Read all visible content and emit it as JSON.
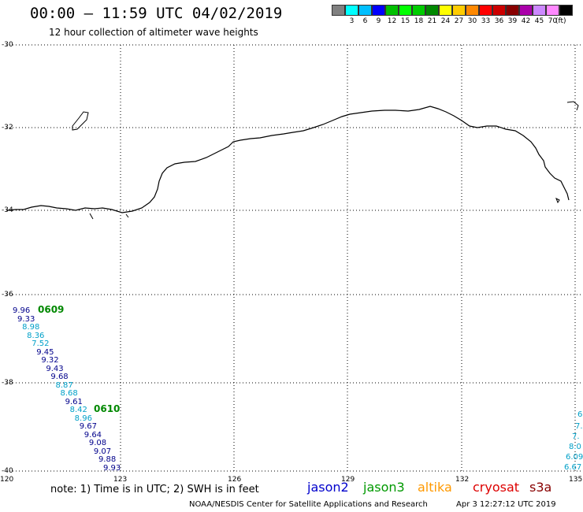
{
  "header": {
    "title": "00:00 – 11:59 UTC 04/02/2019",
    "subtitle": "12 hour collection of altimeter wave heights"
  },
  "legend": {
    "unit": "(ft)",
    "bins": [
      {
        "label": "",
        "color": "#808080"
      },
      {
        "label": "3",
        "color": "#00ffff"
      },
      {
        "label": "6",
        "color": "#00bfff"
      },
      {
        "label": "9",
        "color": "#0000ff"
      },
      {
        "label": "12",
        "color": "#00bf00"
      },
      {
        "label": "15",
        "color": "#00ff00"
      },
      {
        "label": "18",
        "color": "#00cc00"
      },
      {
        "label": "21",
        "color": "#008800"
      },
      {
        "label": "24",
        "color": "#ffff00"
      },
      {
        "label": "27",
        "color": "#ffcc00"
      },
      {
        "label": "30",
        "color": "#ff8800"
      },
      {
        "label": "33",
        "color": "#ff0000"
      },
      {
        "label": "36",
        "color": "#cc0000"
      },
      {
        "label": "39",
        "color": "#880000"
      },
      {
        "label": "42",
        "color": "#aa00aa"
      },
      {
        "label": "45",
        "color": "#cc88ff"
      },
      {
        "label": "70",
        "color": "#ff88ff"
      },
      {
        "label": "",
        "color": "#000000"
      }
    ]
  },
  "axes": {
    "lat_labels": [
      "-30",
      "-32",
      "-34",
      "-36",
      "-38",
      "-40"
    ],
    "lon_labels": [
      "120",
      "123",
      "126",
      "129",
      "132",
      "135"
    ]
  },
  "passes": [
    {
      "label": "0609",
      "color": "#008800"
    },
    {
      "label": "0610",
      "color": "#008800"
    }
  ],
  "track_left": [
    {
      "v": "9.96",
      "c": "#00008b"
    },
    {
      "v": "9.33",
      "c": "#00008b"
    },
    {
      "v": "8.98",
      "c": "#00a0c8"
    },
    {
      "v": "8.36",
      "c": "#00a0c8"
    },
    {
      "v": "7.52",
      "c": "#00a0c8"
    },
    {
      "v": "9.45",
      "c": "#00008b"
    },
    {
      "v": "9.32",
      "c": "#00008b"
    },
    {
      "v": "9.43",
      "c": "#00008b"
    },
    {
      "v": "9.68",
      "c": "#00008b"
    },
    {
      "v": "8.87",
      "c": "#00a0c8"
    },
    {
      "v": "8.68",
      "c": "#00a0c8"
    },
    {
      "v": "9.61",
      "c": "#00008b"
    },
    {
      "v": "8.42",
      "c": "#00a0c8"
    },
    {
      "v": "8.96",
      "c": "#00a0c8"
    },
    {
      "v": "9.67",
      "c": "#00008b"
    },
    {
      "v": "9.64",
      "c": "#00008b"
    },
    {
      "v": "9.08",
      "c": "#00008b"
    },
    {
      "v": "9.07",
      "c": "#00008b"
    },
    {
      "v": "9.88",
      "c": "#00008b"
    },
    {
      "v": "9.93",
      "c": "#00008b"
    }
  ],
  "track_right": [
    {
      "v": "6",
      "c": "#00a0c8"
    },
    {
      "v": "7.",
      "c": "#00a0c8"
    },
    {
      "v": "7.",
      "c": "#00a0c8"
    },
    {
      "v": "8.0",
      "c": "#00a0c8"
    },
    {
      "v": "6.09",
      "c": "#00a0c8"
    },
    {
      "v": "6.67",
      "c": "#00a0c8"
    }
  ],
  "footer": {
    "note": "note: 1) Time is in UTC; 2) SWH is in feet",
    "satellites": [
      {
        "name": "jason2",
        "color": "#0000cc"
      },
      {
        "name": "jason3",
        "color": "#009900"
      },
      {
        "name": "altika",
        "color": "#ff9900"
      },
      {
        "name": "cryosat",
        "color": "#dd0000"
      },
      {
        "name": "s3a",
        "color": "#880000"
      }
    ],
    "credit": "NOAA/NESDIS Center for Satellite Applications and Research",
    "timestamp": "Apr  3 12:27:12 UTC 2019"
  }
}
